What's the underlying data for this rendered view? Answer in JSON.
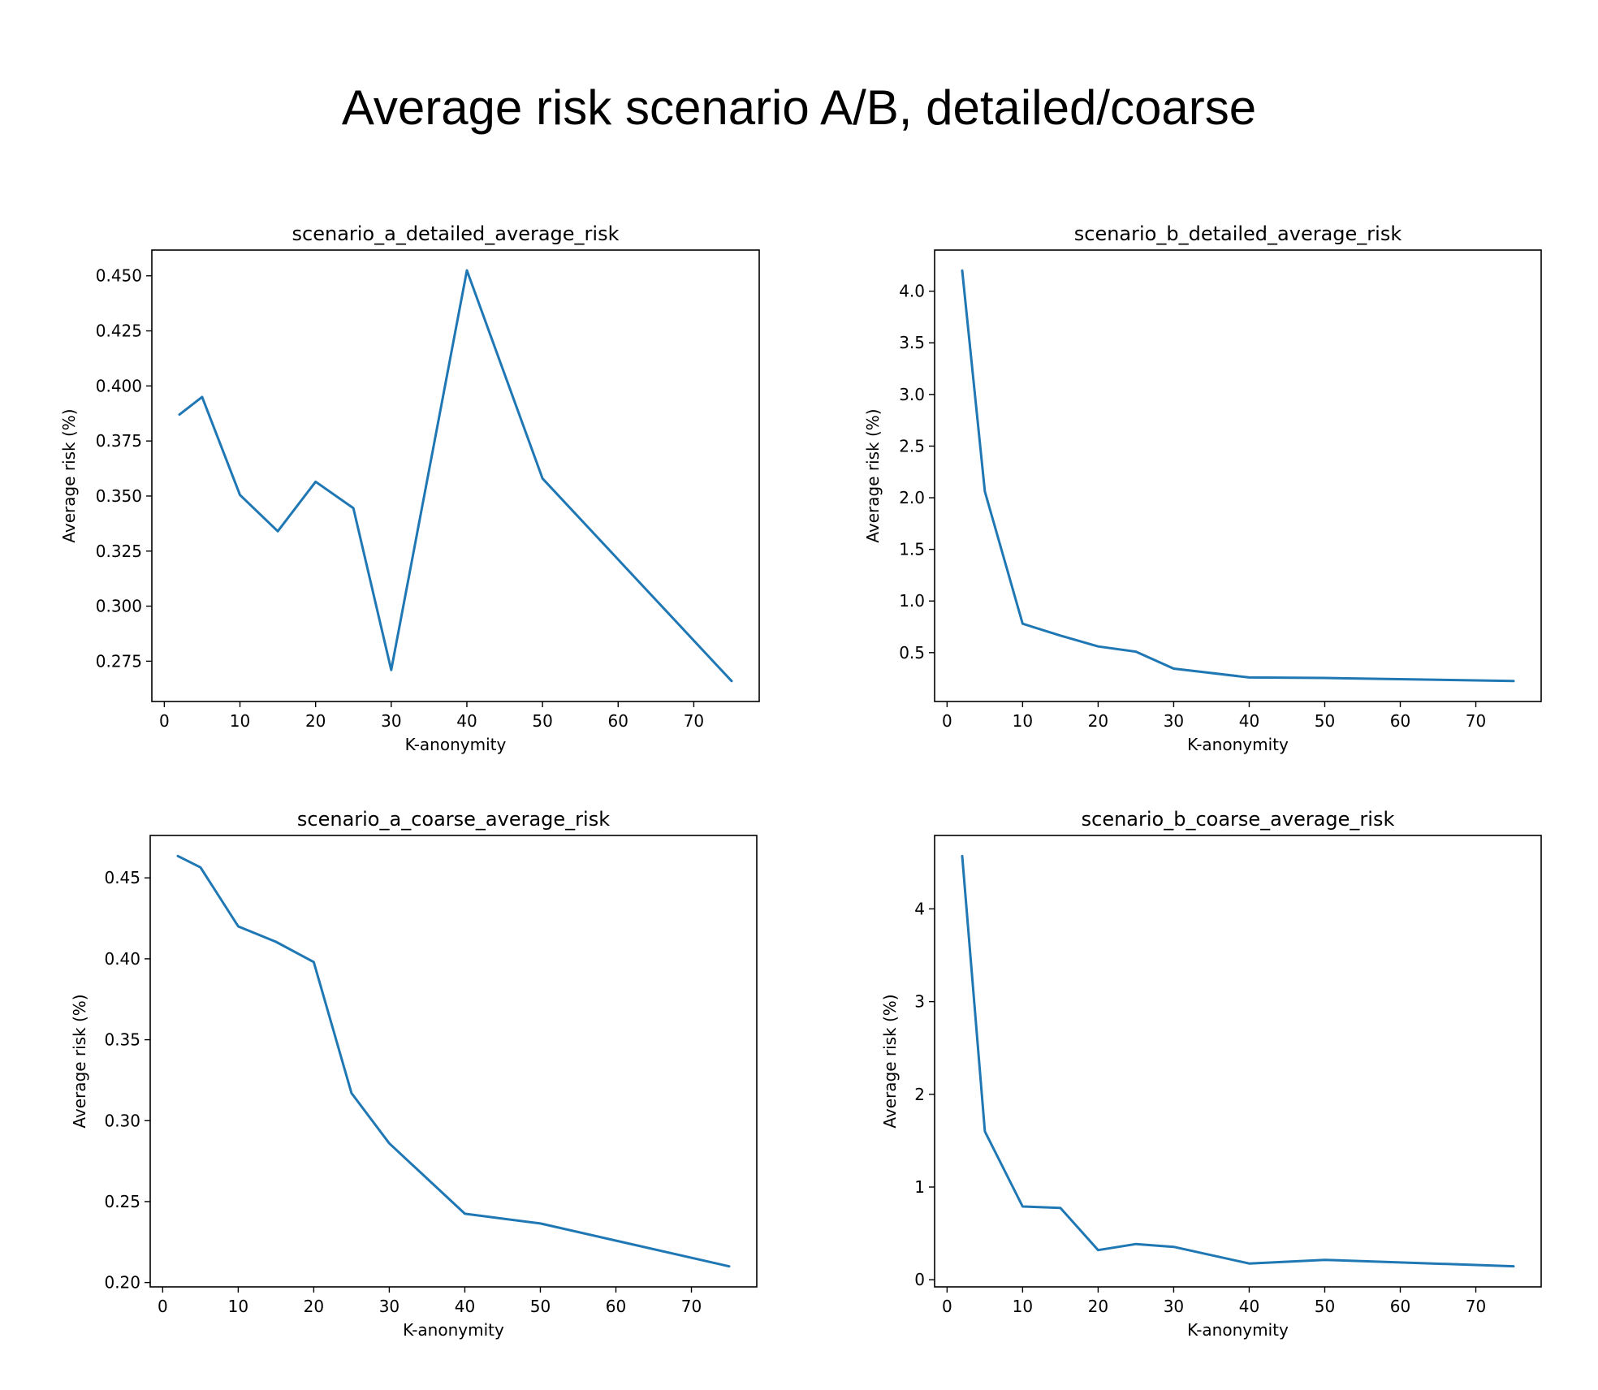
{
  "suptitle": "Average risk scenario A/B, detailed/coarse",
  "line_color": "#1f77b4",
  "chart_data": [
    {
      "type": "line",
      "title": "scenario_a_detailed_average_risk",
      "xlabel": "K-anonymity",
      "ylabel": "Average risk (%)",
      "x": [
        2,
        5,
        10,
        15,
        20,
        25,
        30,
        40,
        50,
        75
      ],
      "y": [
        0.387,
        0.395,
        0.3505,
        0.334,
        0.3565,
        0.3445,
        0.271,
        0.4525,
        0.358,
        0.266
      ],
      "xlim": [
        -1.65,
        78.65
      ],
      "ylim": [
        0.2567,
        0.4617
      ],
      "xticks": [
        0,
        10,
        20,
        30,
        40,
        50,
        60,
        70
      ],
      "yticks": [
        0.275,
        0.3,
        0.325,
        0.35,
        0.375,
        0.4,
        0.425,
        0.45
      ],
      "yticklabels": [
        "0.275",
        "0.300",
        "0.325",
        "0.350",
        "0.375",
        "0.400",
        "0.425",
        "0.450"
      ],
      "grid": false
    },
    {
      "type": "line",
      "title": "scenario_b_detailed_average_risk",
      "xlabel": "K-anonymity",
      "ylabel": "Average risk (%)",
      "x": [
        2,
        5,
        10,
        15,
        20,
        25,
        30,
        40,
        50,
        75
      ],
      "y": [
        4.2,
        2.06,
        0.78,
        0.665,
        0.56,
        0.51,
        0.345,
        0.26,
        0.255,
        0.225
      ],
      "xlim": [
        -1.65,
        78.65
      ],
      "ylim": [
        0.027,
        4.398
      ],
      "xticks": [
        0,
        10,
        20,
        30,
        40,
        50,
        60,
        70
      ],
      "yticks": [
        0.5,
        1.0,
        1.5,
        2.0,
        2.5,
        3.0,
        3.5,
        4.0
      ],
      "yticklabels": [
        "0.5",
        "1.0",
        "1.5",
        "2.0",
        "2.5",
        "3.0",
        "3.5",
        "4.0"
      ],
      "grid": false
    },
    {
      "type": "line",
      "title": "scenario_a_coarse_average_risk",
      "xlabel": "K-anonymity",
      "ylabel": "Average risk (%)",
      "x": [
        2,
        5,
        10,
        15,
        20,
        25,
        30,
        40,
        50,
        75
      ],
      "y": [
        0.4635,
        0.4565,
        0.42,
        0.4105,
        0.398,
        0.317,
        0.286,
        0.2425,
        0.2365,
        0.21
      ],
      "xlim": [
        -1.65,
        78.65
      ],
      "ylim": [
        0.1973,
        0.4762
      ],
      "xticks": [
        0,
        10,
        20,
        30,
        40,
        50,
        60,
        70
      ],
      "yticks": [
        0.2,
        0.25,
        0.3,
        0.35,
        0.4,
        0.45
      ],
      "yticklabels": [
        "0.20",
        "0.25",
        "0.30",
        "0.35",
        "0.40",
        "0.45"
      ],
      "grid": false
    },
    {
      "type": "line",
      "title": "scenario_b_coarse_average_risk",
      "xlabel": "K-anonymity",
      "ylabel": "Average risk (%)",
      "x": [
        2,
        5,
        10,
        15,
        20,
        25,
        30,
        40,
        50,
        75
      ],
      "y": [
        4.57,
        1.6,
        0.79,
        0.775,
        0.32,
        0.385,
        0.355,
        0.175,
        0.215,
        0.145
      ],
      "xlim": [
        -1.65,
        78.65
      ],
      "ylim": [
        -0.077,
        4.792
      ],
      "xticks": [
        0,
        10,
        20,
        30,
        40,
        50,
        60,
        70
      ],
      "yticks": [
        0,
        1,
        2,
        3,
        4
      ],
      "yticklabels": [
        "0",
        "1",
        "2",
        "3",
        "4"
      ],
      "grid": false
    }
  ]
}
